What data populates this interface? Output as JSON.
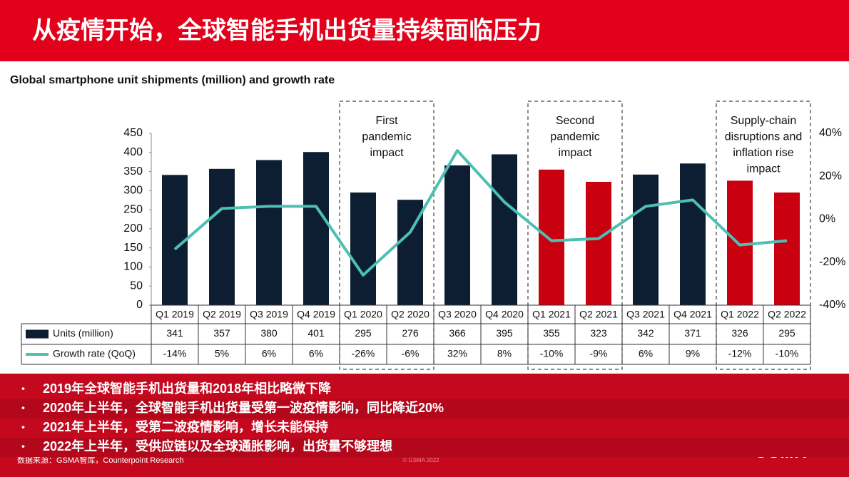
{
  "slide": {
    "title": "从疫情开始，全球智能手机出货量持续面临压力",
    "bullets": [
      "2019年全球智能手机出货量和2018年相比略微下降",
      "2020年上半年，全球智能手机出货量受第一波疫情影响，同比降近20%",
      "2021年上半年，受第二波疫情影响，增长未能保持",
      "2022年上半年，受供应链以及全球通胀影响，出货量不够理想"
    ],
    "source": "数据来源：GSMA智库，Counterpoint Research",
    "watermark": "© GSMA 2022",
    "logo": "GSMA"
  },
  "chart_data": {
    "type": "bar-line",
    "title": "Global smartphone unit shipments (million) and growth rate",
    "categories": [
      "Q1 2019",
      "Q2 2019",
      "Q3 2019",
      "Q4 2019",
      "Q1 2020",
      "Q2 2020",
      "Q3 2020",
      "Q4 2020",
      "Q1 2021",
      "Q2 2021",
      "Q3 2021",
      "Q4 2021",
      "Q1 2022",
      "Q2 2022"
    ],
    "series": [
      {
        "name": "Units (million)",
        "color": "#0d1e33",
        "values": [
          341,
          357,
          380,
          401,
          295,
          276,
          366,
          395,
          355,
          323,
          342,
          371,
          326,
          295
        ],
        "colors": [
          "#0d1e33",
          "#0d1e33",
          "#0d1e33",
          "#0d1e33",
          "#0d1e33",
          "#0d1e33",
          "#0d1e33",
          "#0d1e33",
          "#c8000f",
          "#c8000f",
          "#0d1e33",
          "#0d1e33",
          "#c8000f",
          "#c8000f"
        ]
      },
      {
        "name": "Growth rate (QoQ)",
        "color": "#4dbfb3",
        "axis": "y2",
        "values": [
          -14,
          5,
          6,
          6,
          -26,
          -6,
          32,
          8,
          -10,
          -9,
          6,
          9,
          -12,
          -10
        ],
        "value_labels": [
          "-14%",
          "5%",
          "6%",
          "6%",
          "-26%",
          "-6%",
          "32%",
          "8%",
          "-10%",
          "-9%",
          "6%",
          "9%",
          "-12%",
          "-10%"
        ]
      }
    ],
    "ylim": [
      0,
      450
    ],
    "yticks": [
      0,
      50,
      100,
      150,
      200,
      250,
      300,
      350,
      400,
      450
    ],
    "y2lim": [
      -40,
      40
    ],
    "y2ticks": [
      {
        "value": 40,
        "label": "40%"
      },
      {
        "value": 20,
        "label": "20%"
      },
      {
        "value": 0,
        "label": "0%"
      },
      {
        "value": -20,
        "label": "-20%"
      },
      {
        "value": -40,
        "label": "-40%"
      }
    ],
    "grid": false,
    "annotations": [
      [
        "First",
        "pandemic",
        "impact"
      ],
      [
        "Second",
        "pandemic",
        "impact"
      ],
      [
        "Supply-chain",
        "disruptions and",
        "inflation rise",
        "impact"
      ]
    ]
  }
}
